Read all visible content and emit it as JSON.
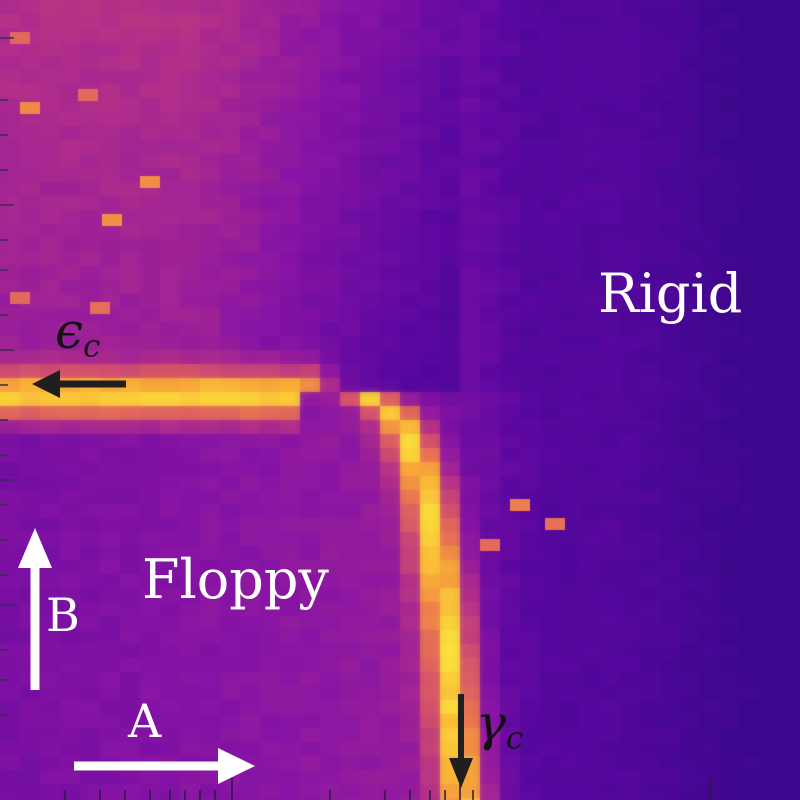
{
  "chart_data": {
    "type": "heatmap",
    "title": "",
    "xlabel": "",
    "ylabel": "",
    "x_scale": "log",
    "colormap": "plasma",
    "grid": false,
    "legend": "none",
    "regions": [
      {
        "key": "rigid",
        "label": "Rigid"
      },
      {
        "key": "floppy",
        "label": "Floppy"
      }
    ],
    "critical_lines": {
      "epsilon_c": {
        "symbol": "ϵ",
        "subscript": "c"
      },
      "gamma_c": {
        "symbol": "γ",
        "subscript": "c"
      }
    },
    "direction_arrows": [
      {
        "key": "A",
        "label": "A",
        "direction": "right",
        "color": "#ffffff"
      },
      {
        "key": "B",
        "label": "B",
        "direction": "up",
        "color": "#ffffff"
      }
    ],
    "marker_arrow_color": "#1f1f1f"
  }
}
